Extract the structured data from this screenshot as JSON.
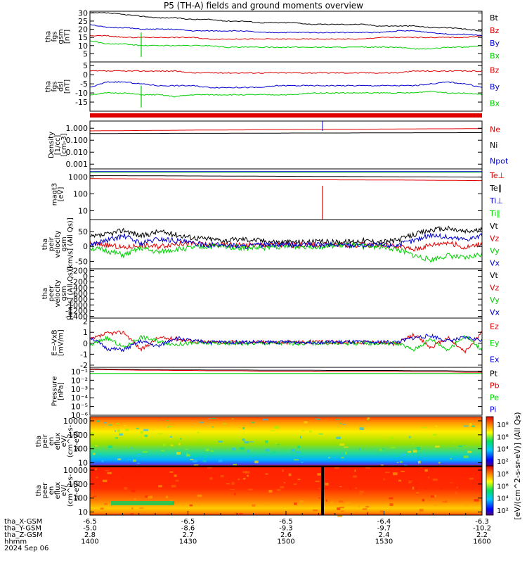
{
  "title": "P5 (TH-A) fields and ground moments overview",
  "colors": {
    "black": "#000000",
    "red": "#e00000",
    "green": "#00d000",
    "blue": "#0000d0"
  },
  "chart_data": [
    {
      "type": "line",
      "id": "p1",
      "ylabel": [
        "tha",
        "fgs",
        "gsm",
        "[nT]"
      ],
      "ylim": [
        0,
        31
      ],
      "yticks": [
        30,
        25,
        20,
        15,
        10,
        5
      ],
      "x_range": [
        "1400",
        "1600"
      ],
      "legend": [
        "Bt",
        "Bz",
        "By",
        "Bx"
      ],
      "series": [
        {
          "name": "Bt",
          "color": "black",
          "values": [
            30,
            30,
            29,
            28,
            27,
            27,
            26,
            26,
            25,
            25,
            24,
            24,
            24,
            23,
            23,
            23,
            23,
            22,
            22,
            22,
            21,
            21,
            20,
            19
          ]
        },
        {
          "name": "Bz",
          "color": "red",
          "values": [
            16,
            16,
            15,
            15,
            15,
            15,
            15,
            14,
            14,
            14,
            14,
            14,
            14,
            14,
            14,
            14,
            14,
            15,
            15,
            15,
            15,
            15,
            15,
            16
          ]
        },
        {
          "name": "By",
          "color": "blue",
          "values": [
            23,
            21,
            21,
            20,
            20,
            20,
            19,
            19,
            19,
            19,
            18,
            18,
            18,
            18,
            18,
            18,
            18,
            18,
            19,
            19,
            18,
            17,
            17,
            16
          ]
        },
        {
          "name": "Bx",
          "color": "green",
          "values": [
            13,
            11,
            11,
            10,
            10,
            10,
            10,
            10,
            9,
            9,
            9,
            9,
            9,
            9,
            9,
            9,
            9,
            9,
            9,
            8,
            8,
            9,
            9,
            10
          ]
        }
      ]
    },
    {
      "type": "line",
      "id": "p2",
      "ylabel": [
        "tha",
        "fgs",
        "dsl",
        "[nT]"
      ],
      "ylim": [
        -20,
        7
      ],
      "yticks": [
        5,
        0,
        -5,
        -10,
        -15
      ],
      "legend": [
        "Bz",
        "By",
        "Bx"
      ],
      "series": [
        {
          "name": "Bz",
          "color": "red",
          "values": [
            2,
            2,
            2,
            2,
            2,
            2,
            1,
            1,
            1,
            1,
            1,
            1,
            1,
            1,
            1,
            1,
            1,
            1,
            1,
            2,
            2,
            2,
            2,
            2
          ]
        },
        {
          "name": "By",
          "color": "blue",
          "values": [
            -7,
            -4,
            -4,
            -5,
            -6,
            -6,
            -6,
            -7,
            -7,
            -7,
            -7,
            -6,
            -6,
            -6,
            -6,
            -6,
            -6,
            -6,
            -6,
            -6,
            -5,
            -4,
            -5,
            -7
          ]
        },
        {
          "name": "Bx",
          "color": "green",
          "values": [
            -11,
            -10,
            -10,
            -11,
            -11,
            -12,
            -11,
            -11,
            -11,
            -11,
            -11,
            -11,
            -11,
            -10,
            -10,
            -10,
            -10,
            -10,
            -10,
            -10,
            -9,
            -10,
            -10,
            -11
          ]
        }
      ]
    },
    {
      "type": "line",
      "id": "p3",
      "scale": "log",
      "ylabel": [
        "Density",
        "[1/cc]",
        "[cm-3]"
      ],
      "ylim": [
        0.0004,
        4
      ],
      "ytick_labels": [
        "1.000",
        "0.100",
        "0.010",
        "0.001"
      ],
      "yticks": [
        1,
        0.1,
        0.01,
        0.001
      ],
      "legend": [
        "Ne",
        "Ni",
        "Npot"
      ],
      "series": [
        {
          "name": "Ne",
          "color": "red",
          "values": [
            0.6,
            0.62,
            0.63,
            0.65,
            0.66,
            0.68,
            0.7,
            0.71,
            0.72,
            0.73,
            0.75,
            0.76,
            0.78,
            0.8,
            0.8,
            0.82,
            0.83,
            0.85,
            0.86,
            0.88,
            0.9,
            0.9,
            0.92,
            0.95
          ]
        },
        {
          "name": "Ni",
          "color": "black",
          "values": [
            0.36,
            0.36,
            0.37,
            0.37,
            0.37,
            0.38,
            0.38,
            0.38,
            0.38,
            0.39,
            0.39,
            0.39,
            0.4,
            0.4,
            0.4,
            0.4,
            0.41,
            0.41,
            0.41,
            0.42,
            0.42,
            0.42,
            0.43,
            0.43
          ]
        },
        {
          "name": "Npot",
          "color": "blue",
          "values": []
        }
      ]
    },
    {
      "type": "line",
      "id": "p4",
      "scale": "log",
      "ylabel": [
        "magt3",
        "[eV]"
      ],
      "ylim": [
        3,
        3000
      ],
      "ytick_labels": [
        "1000",
        "100",
        "10"
      ],
      "yticks": [
        1000,
        100,
        10
      ],
      "legend": [
        "Te⊥",
        "Te∥",
        "Ti⊥",
        "Ti∥"
      ],
      "series": [
        {
          "name": "Te⊥",
          "color": "red",
          "values": [
            800,
            790,
            780,
            770,
            760,
            750,
            740,
            730,
            720,
            710,
            700,
            690,
            690,
            680,
            680,
            670,
            670,
            660,
            660,
            650,
            640,
            630,
            620,
            610
          ]
        },
        {
          "name": "Te∥",
          "color": "black",
          "values": [
            1200,
            1200,
            1190,
            1180,
            1170,
            1160,
            1150,
            1140,
            1130,
            1120,
            1110,
            1100,
            1090,
            1080,
            1070,
            1060,
            1050,
            1040,
            1030,
            1020,
            1010,
            1000,
            990,
            980
          ]
        },
        {
          "name": "Ti∥",
          "color": "green",
          "values": [
            1900,
            1900,
            1900,
            1900,
            1900,
            1900,
            1900,
            1900,
            1900,
            1900,
            1900,
            1900,
            1900,
            1900,
            1900,
            1900,
            1900,
            1900,
            1900,
            1900,
            1900,
            1900,
            1900,
            1900
          ]
        },
        {
          "name": "Ti⊥",
          "color": "blue",
          "values": [
            2100,
            2100,
            2100,
            2100,
            2100,
            2100,
            2100,
            2100,
            2100,
            2100,
            2100,
            2100,
            2100,
            2100,
            2100,
            2100,
            2100,
            2100,
            2100,
            2100,
            2100,
            2100,
            2100,
            2100
          ]
        }
      ]
    },
    {
      "type": "line",
      "id": "p5",
      "ylabel": [
        "tha",
        "peir",
        "velocity",
        "gsm",
        "[km/s] (All Qs)]"
      ],
      "ylim": [
        -75,
        90
      ],
      "yticks": [
        50,
        0,
        -50
      ],
      "legend": [
        "Vt",
        "Vz",
        "Vy",
        "Vx"
      ],
      "series": [
        {
          "name": "Vt",
          "color": "black",
          "values": [
            30,
            40,
            55,
            35,
            50,
            40,
            30,
            25,
            20,
            25,
            20,
            15,
            15,
            15,
            15,
            15,
            20,
            15,
            20,
            40,
            55,
            60,
            50,
            55
          ]
        },
        {
          "name": "Vz",
          "color": "red",
          "values": [
            10,
            5,
            -5,
            5,
            0,
            10,
            10,
            5,
            5,
            5,
            5,
            5,
            5,
            5,
            5,
            5,
            5,
            5,
            0,
            -10,
            5,
            15,
            -5,
            10
          ]
        },
        {
          "name": "Vy",
          "color": "green",
          "values": [
            -5,
            -15,
            -30,
            -5,
            -20,
            -10,
            -5,
            0,
            0,
            -5,
            -5,
            0,
            0,
            0,
            0,
            5,
            0,
            0,
            -10,
            -30,
            -45,
            -30,
            -40,
            -25
          ]
        },
        {
          "name": "Vx",
          "color": "blue",
          "values": [
            5,
            20,
            35,
            10,
            25,
            20,
            10,
            5,
            5,
            0,
            5,
            5,
            5,
            5,
            5,
            5,
            5,
            5,
            5,
            20,
            40,
            30,
            25,
            35
          ]
        }
      ]
    },
    {
      "type": "line",
      "id": "p6",
      "ylabel": [
        "tha",
        "peer",
        "velocity",
        "gsm",
        "[km/s] (All Qs)]"
      ],
      "ylim": [
        -1460,
        260
      ],
      "yticks": [
        200,
        0,
        -200,
        -400,
        -600,
        -800,
        -1000,
        -1200,
        -1400
      ],
      "legend": [
        "Vt",
        "Vz",
        "Vy",
        "Vx"
      ],
      "series": []
    },
    {
      "type": "line",
      "id": "p7",
      "ylabel": [
        "E=-VxB",
        "[mV/m]"
      ],
      "ylim": [
        -2.2,
        2.3
      ],
      "yticks": [
        2,
        1,
        0,
        -1,
        -2
      ],
      "legend": [
        "Ez",
        "Ey",
        "Ex"
      ],
      "series": [
        {
          "name": "Ez",
          "color": "red",
          "values": [
            0.3,
            0.9,
            1.0,
            -0.6,
            0.5,
            0.4,
            0.2,
            0.1,
            0.1,
            0.1,
            0.1,
            0.1,
            0.1,
            0.1,
            0.1,
            0.1,
            0.1,
            0.1,
            -0.1,
            0.8,
            -0.4,
            0.5,
            -0.8,
            1.0
          ]
        },
        {
          "name": "Ey",
          "color": "green",
          "values": [
            -0.2,
            0.5,
            -0.4,
            0.6,
            0.2,
            -0.1,
            0.0,
            0.0,
            0.0,
            0.0,
            0.0,
            0.0,
            0.0,
            0.0,
            0.0,
            0.0,
            0.0,
            0.0,
            0.0,
            -0.6,
            0.4,
            -0.6,
            0.7,
            -0.6
          ]
        },
        {
          "name": "Ex",
          "color": "blue",
          "values": [
            0.6,
            -0.5,
            -0.6,
            0.2,
            -0.3,
            0.5,
            0.2,
            0.1,
            0.1,
            0.1,
            0.1,
            0.1,
            0.1,
            0.1,
            0.1,
            0.1,
            0.1,
            0.1,
            0.1,
            0.5,
            0.7,
            0.2,
            0.5,
            0.3
          ]
        }
      ]
    },
    {
      "type": "line",
      "id": "p8",
      "scale": "log",
      "ylabel": [
        "Pressure",
        "[nPa]"
      ],
      "ylim": [
        1e-06,
        0.3
      ],
      "ytick_labels": [
        "10⁻¹",
        "10⁻²",
        "10⁻³",
        "10⁻⁴",
        "10⁻⁵",
        "10⁻⁶"
      ],
      "yticks": [
        0.1,
        0.01,
        0.001,
        0.0001,
        1e-05,
        1e-06
      ],
      "legend": [
        "Pt",
        "Pb",
        "Pe",
        "Pi"
      ],
      "series": [
        {
          "name": "Pt",
          "color": "black",
          "values": [
            0.2,
            0.19,
            0.18,
            0.17,
            0.17,
            0.16,
            0.16,
            0.15,
            0.15,
            0.15,
            0.14,
            0.14,
            0.14,
            0.14,
            0.13,
            0.13,
            0.13,
            0.13,
            0.13,
            0.12,
            0.12,
            0.12,
            0.11,
            0.11
          ]
        },
        {
          "name": "Pb",
          "color": "red",
          "values": [
            0.17,
            0.16,
            0.15,
            0.14,
            0.14,
            0.13,
            0.13,
            0.12,
            0.12,
            0.12,
            0.11,
            0.11,
            0.11,
            0.11,
            0.1,
            0.1,
            0.1,
            0.1,
            0.1,
            0.09,
            0.09,
            0.09,
            0.08,
            0.08
          ]
        },
        {
          "name": "Pe",
          "color": "green",
          "values": [
            0.06,
            0.06,
            0.06,
            0.06,
            0.06,
            0.06,
            0.06,
            0.06,
            0.06,
            0.06,
            0.06,
            0.06,
            0.06,
            0.06,
            0.06,
            0.06,
            0.06,
            0.06,
            0.06,
            0.06,
            0.06,
            0.06,
            0.06,
            0.06
          ]
        }
      ]
    },
    {
      "type": "heatmap",
      "id": "p9",
      "scale": "log",
      "ylabel": [
        "tha",
        "peir",
        "en",
        "eflux",
        "eV/",
        "(cm^2-s-",
        "sr-eV)"
      ],
      "ylim": [
        6,
        20000
      ],
      "ytick_labels": [
        "10000",
        "1000",
        "100",
        "10"
      ],
      "yticks": [
        10000,
        1000,
        100,
        10
      ]
    },
    {
      "type": "heatmap",
      "id": "p10",
      "scale": "log",
      "ylabel": [
        "tha",
        "peer",
        "en",
        "eflux",
        "eV/",
        "(cm^2-s-",
        "sr-eV)"
      ],
      "ylim": [
        6,
        20000
      ],
      "ytick_labels": [
        "10000",
        "1000",
        "100",
        "10"
      ],
      "yticks": [
        10000,
        1000,
        100,
        10
      ]
    }
  ],
  "colorbar": {
    "label": "[eV/(cm^2-s-sr-eV)] (All Qs)",
    "upper_ticks": [
      "10⁸",
      "10⁶",
      "10⁴",
      "10²"
    ],
    "lower_ticks": [
      "10⁸",
      "10⁶",
      "10⁴",
      "10²"
    ]
  },
  "x_axis": {
    "tick_labels_hhmm": [
      "1400",
      "1430",
      "1500",
      "1530",
      "1600"
    ],
    "rows": [
      {
        "label": "tha_X-GSM",
        "values": [
          "-6.5",
          "-6.5",
          "-6.5",
          "-6.4",
          "-6.3"
        ]
      },
      {
        "label": "tha_Y-GSM",
        "values": [
          "-5.0",
          "-8.6",
          "-9.3",
          "-9.7",
          "-10.2"
        ]
      },
      {
        "label": "tha_Z-GSM",
        "values": [
          "2.8",
          "2.7",
          "2.6",
          "2.4",
          "2.2"
        ]
      },
      {
        "label": "hhmm",
        "values": [
          "1400",
          "1430",
          "1500",
          "1530",
          "1600"
        ]
      }
    ],
    "date": "2024 Sep 06"
  }
}
